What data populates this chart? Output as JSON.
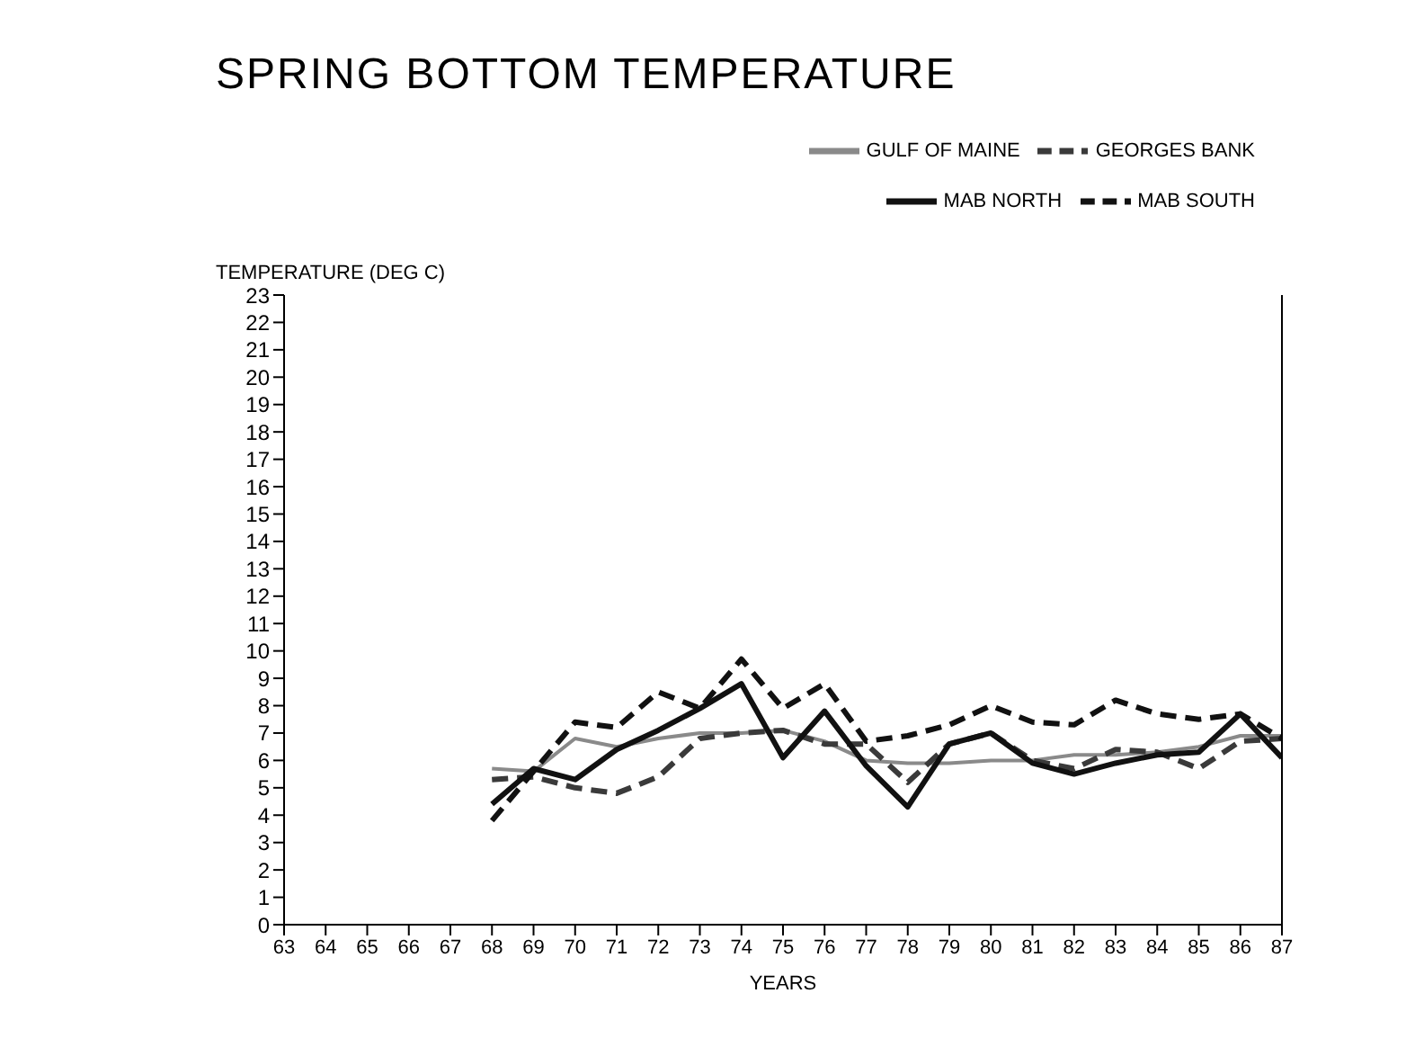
{
  "chart_data": {
    "type": "line",
    "title": "SPRING BOTTOM TEMPERATURE",
    "ylabel": "TEMPERATURE (DEG C)",
    "xlabel": "YEARS",
    "x": [
      68,
      69,
      70,
      71,
      72,
      73,
      74,
      75,
      76,
      77,
      78,
      79,
      80,
      81,
      82,
      83,
      84,
      85,
      86,
      87
    ],
    "series": [
      {
        "name": "GULF OF MAINE",
        "color": "#8a8a8a",
        "line_style": "solid",
        "values": [
          5.7,
          5.6,
          6.8,
          6.5,
          6.8,
          7.0,
          7.0,
          7.1,
          6.7,
          6.0,
          5.9,
          5.9,
          6.0,
          6.0,
          6.2,
          6.2,
          6.3,
          6.5,
          6.9,
          6.9
        ]
      },
      {
        "name": "GEORGES BANK",
        "color": "#3a3a3a",
        "line_style": "dashed",
        "values": [
          5.3,
          5.4,
          5.0,
          4.8,
          5.4,
          6.8,
          7.0,
          7.1,
          6.6,
          6.6,
          5.2,
          6.6,
          7.0,
          6.0,
          5.7,
          6.4,
          6.3,
          5.7,
          6.7,
          6.8
        ]
      },
      {
        "name": "MAB NORTH",
        "color": "#111111",
        "line_style": "solid",
        "values": [
          4.4,
          5.7,
          5.3,
          6.4,
          7.1,
          7.9,
          8.8,
          6.1,
          7.8,
          5.8,
          4.3,
          6.6,
          7.0,
          5.9,
          5.5,
          5.9,
          6.2,
          6.3,
          7.7,
          6.1
        ]
      },
      {
        "name": "MAB SOUTH",
        "color": "#111111",
        "line_style": "dashed",
        "values": [
          3.8,
          5.6,
          7.4,
          7.2,
          8.5,
          7.9,
          9.7,
          7.9,
          8.8,
          6.7,
          6.9,
          7.3,
          8.0,
          7.4,
          7.3,
          8.2,
          7.7,
          7.5,
          7.7,
          6.8
        ]
      }
    ],
    "xlim": [
      63,
      87
    ],
    "xticks": [
      63,
      64,
      65,
      66,
      67,
      68,
      69,
      70,
      71,
      72,
      73,
      74,
      75,
      76,
      77,
      78,
      79,
      80,
      81,
      82,
      83,
      84,
      85,
      86,
      87
    ],
    "ylim": [
      0,
      23
    ],
    "yticks": [
      0,
      1,
      2,
      3,
      4,
      5,
      6,
      7,
      8,
      9,
      10,
      11,
      12,
      13,
      14,
      15,
      16,
      17,
      18,
      19,
      20,
      21,
      22,
      23
    ],
    "grid": false,
    "legend": "top right",
    "marker": "none"
  }
}
